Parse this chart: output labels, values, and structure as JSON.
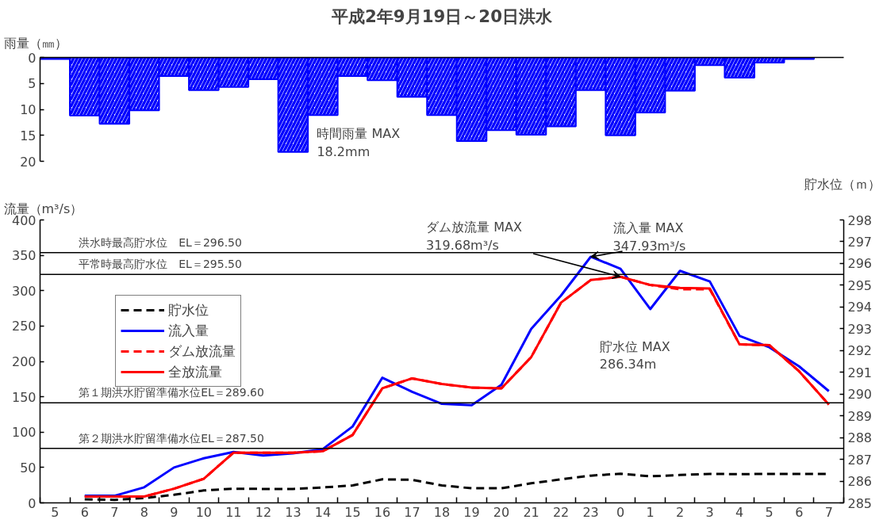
{
  "chart_data": [
    {
      "type": "bar",
      "title": "平成2年9月19日～20日洪水",
      "ylabel": "雨量（㎜）",
      "categories": [
        null,
        null,
        null,
        null,
        null,
        null,
        null,
        null,
        null,
        null,
        null,
        null,
        null,
        null,
        null,
        null,
        null,
        null,
        null,
        null,
        null,
        null,
        null,
        null,
        null,
        null,
        null
      ],
      "series": [
        {
          "color": "#0000ff",
          "values": [
            0.3,
            11.2,
            12.8,
            10.2,
            3.6,
            6.3,
            5.7,
            4.2,
            18.2,
            11.1,
            3.6,
            4.4,
            7.6,
            11.1,
            16.1,
            14.0,
            14.9,
            13.3,
            6.3,
            15.0,
            10.6,
            6.4,
            1.5,
            3.9,
            1.0,
            0.3,
            null
          ]
        }
      ],
      "ylim": [
        20,
        0
      ],
      "yticks": [
        0,
        5,
        10,
        15,
        20
      ],
      "tick_labels": "y",
      "grid": false,
      "annotations": [
        "時間雨量 MAX\n18.2mm"
      ]
    },
    {
      "type": "line",
      "ylabel": "流量（m³/s）",
      "y2label": "貯水位（ｍ）",
      "categories": [
        "5",
        "6",
        "7",
        "8",
        "9",
        "10",
        "11",
        "12",
        "13",
        "14",
        "15",
        "16",
        "17",
        "18",
        "19",
        "20",
        "21",
        "22",
        "23",
        "0",
        "1",
        "2",
        "3",
        "4",
        "5",
        "6",
        "7"
      ],
      "series": [
        {
          "name": "貯水位",
          "color": "#000000",
          "line_style": "dashed",
          "axis": "y2",
          "values": [
            null,
            285.16,
            285.14,
            285.22,
            285.37,
            285.57,
            285.65,
            285.64,
            285.64,
            285.71,
            285.8,
            286.08,
            286.06,
            285.8,
            285.67,
            285.67,
            285.9,
            286.08,
            286.25,
            286.34,
            286.22,
            286.28,
            286.33,
            286.32,
            286.33,
            286.33,
            286.33
          ]
        },
        {
          "name": "流入量",
          "color": "#0000ff",
          "line_style": "solid",
          "values": [
            null,
            10,
            10,
            22,
            50,
            63,
            72,
            67,
            70,
            76,
            108,
            177,
            157,
            140,
            138,
            167,
            246,
            293,
            347.93,
            331,
            274,
            328,
            313,
            236,
            220,
            193,
            158
          ]
        },
        {
          "name": "ダム放流量",
          "color": "#ff0000",
          "line_style": "dashed",
          "values": [
            null,
            9,
            9,
            9,
            20,
            34,
            71,
            71,
            71,
            73,
            96,
            162,
            176,
            168,
            163,
            162,
            206,
            283,
            315,
            319.68,
            308,
            302,
            302,
            224,
            223,
            186,
            139
          ]
        },
        {
          "name": "全放流量",
          "color": "#ff0000",
          "line_style": "solid",
          "values": [
            null,
            9,
            9,
            9,
            20,
            34,
            71,
            71,
            71,
            73,
            96,
            162,
            176,
            168,
            163,
            162,
            206,
            283,
            315,
            319.68,
            308,
            304,
            303,
            224,
            223,
            186,
            139
          ]
        }
      ],
      "ylim": [
        0,
        400
      ],
      "yticks": [
        0,
        50,
        100,
        150,
        200,
        250,
        300,
        350,
        400
      ],
      "y2lim": [
        285,
        298
      ],
      "y2ticks": [
        285,
        286,
        287,
        288,
        289,
        290,
        291,
        292,
        293,
        294,
        295,
        296,
        297,
        298
      ],
      "ref_lines": [
        {
          "axis": "y2",
          "value": 296.5,
          "label": "洪水時最高貯水位　EL＝296.50"
        },
        {
          "axis": "y2",
          "value": 295.5,
          "label": "平常時最高貯水位　EL＝295.50"
        },
        {
          "axis": "y2",
          "value": 289.6,
          "label": "第１期洪水貯留準備水位EL＝289.60"
        },
        {
          "axis": "y2",
          "value": 287.5,
          "label": "第２期洪水貯留準備水位EL＝287.50"
        }
      ],
      "annotations": [
        {
          "text": "流入量 MAX\n347.93m³/s",
          "x": "23",
          "y": 347.93
        },
        {
          "text": "ダム放流量 MAX\n319.68m³/s",
          "x": "0",
          "y": 319.68
        },
        "貯水位 MAX\n286.34m"
      ],
      "grid": false,
      "legend": "top left",
      "marker": "none"
    }
  ]
}
